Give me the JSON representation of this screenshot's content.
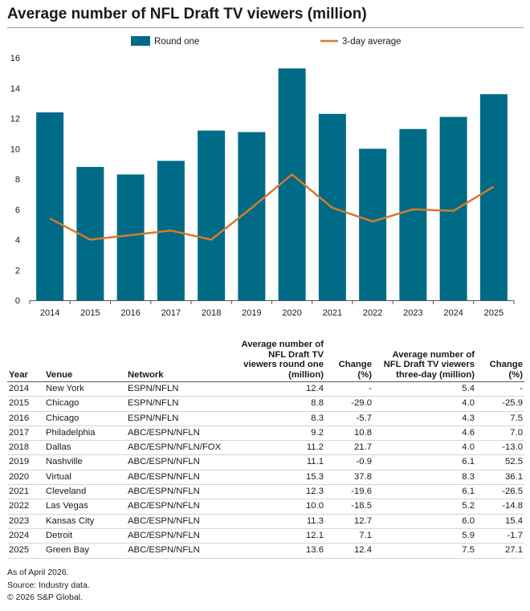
{
  "title": "Average number of NFL Draft TV viewers (million)",
  "colors": {
    "bar": "#006b86",
    "line": "#d9782d",
    "axis": "#555555",
    "text": "#1a1a1a"
  },
  "chart_data": {
    "type": "bar",
    "categories": [
      "2014",
      "2015",
      "2016",
      "2017",
      "2018",
      "2019",
      "2020",
      "2021",
      "2022",
      "2023",
      "2024",
      "2025"
    ],
    "series": [
      {
        "name": "Round one",
        "type": "bar",
        "values": [
          12.4,
          8.8,
          8.3,
          9.2,
          11.2,
          11.1,
          15.3,
          12.3,
          10.0,
          11.3,
          12.1,
          13.6
        ]
      },
      {
        "name": "3-day average",
        "type": "line",
        "values": [
          5.4,
          4.0,
          4.3,
          4.6,
          4.0,
          6.1,
          8.3,
          6.1,
          5.2,
          6.0,
          5.9,
          7.5
        ]
      }
    ],
    "ylim": [
      0,
      16
    ],
    "yticks": [
      0,
      2,
      4,
      6,
      8,
      10,
      12,
      14,
      16
    ],
    "legend_position": "top",
    "grid": false
  },
  "table": {
    "headers": [
      "Year",
      "Venue",
      "Network",
      "Average number of NFL Draft TV viewers round one (million)",
      "Change (%)",
      "Average number of NFL Draft TV viewers three-day (million)",
      "Change (%)"
    ],
    "rows": [
      [
        "2014",
        "New York",
        "ESPN/NFLN",
        "12.4",
        "-",
        "5.4",
        "-"
      ],
      [
        "2015",
        "Chicago",
        "ESPN/NFLN",
        "8.8",
        "-29.0",
        "4.0",
        "-25.9"
      ],
      [
        "2016",
        "Chicago",
        "ESPN/NFLN",
        "8.3",
        "-5.7",
        "4.3",
        "7.5"
      ],
      [
        "2017",
        "Philadelphia",
        "ABC/ESPN/NFLN",
        "9.2",
        "10.8",
        "4.6",
        "7.0"
      ],
      [
        "2018",
        "Dallas",
        "ABC/ESPN/NFLN/FOX",
        "11.2",
        "21.7",
        "4.0",
        "-13.0"
      ],
      [
        "2019",
        "Nashville",
        "ABC/ESPN/NFLN",
        "11.1",
        "-0.9",
        "6.1",
        "52.5"
      ],
      [
        "2020",
        "Virtual",
        "ABC/ESPN/NFLN",
        "15.3",
        "37.8",
        "8.3",
        "36.1"
      ],
      [
        "2021",
        "Cleveland",
        "ABC/ESPN/NFLN",
        "12.3",
        "-19.6",
        "6.1",
        "-26.5"
      ],
      [
        "2022",
        "Las Vegas",
        "ABC/ESPN/NFLN",
        "10.0",
        "-18.5",
        "5.2",
        "-14.8"
      ],
      [
        "2023",
        "Kansas City",
        "ABC/ESPN/NFLN",
        "11.3",
        "12.7",
        "6.0",
        "15.4"
      ],
      [
        "2024",
        "Detroit",
        "ABC/ESPN/NFLN",
        "12.1",
        "7.1",
        "5.9",
        "-1.7"
      ],
      [
        "2025",
        "Green Bay",
        "ABC/ESPN/NFLN",
        "13.6",
        "12.4",
        "7.5",
        "27.1"
      ]
    ]
  },
  "notes": [
    "As of April 2026.",
    "Source: Industry data.",
    "© 2026 S&P Global."
  ]
}
